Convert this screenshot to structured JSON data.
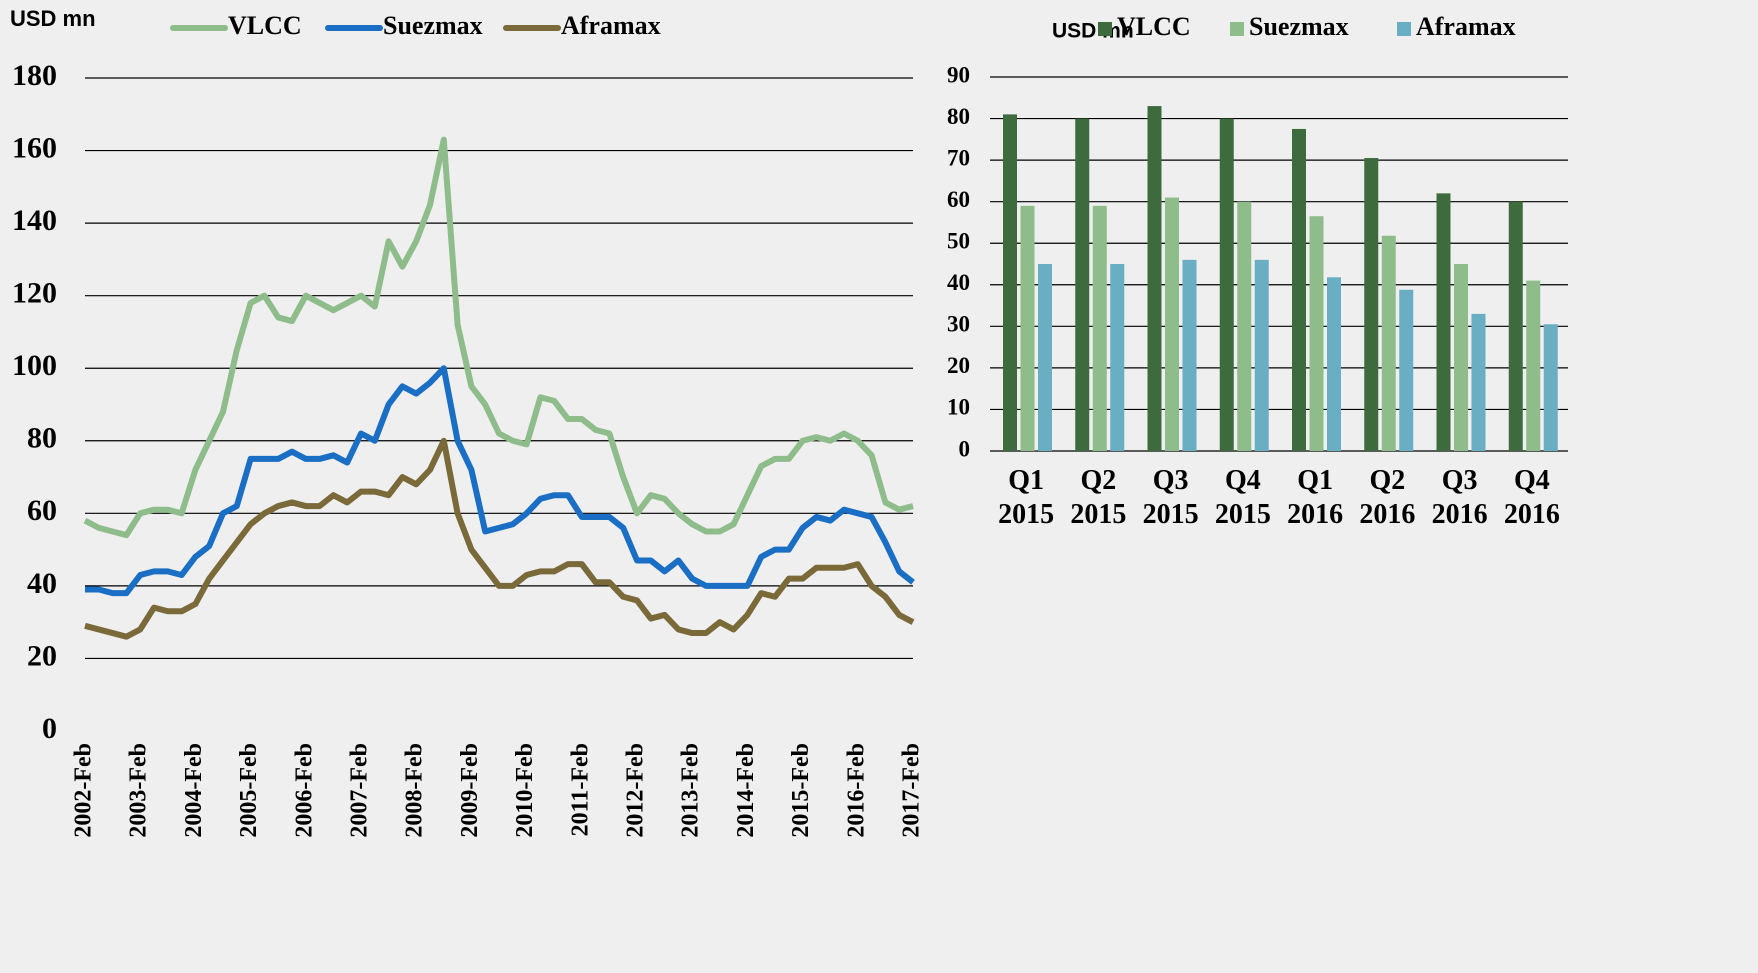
{
  "chart_data": [
    {
      "type": "line",
      "ylabel": "USD mn",
      "categories": [
        "2002-Feb",
        null,
        null,
        null,
        "2003-Feb",
        null,
        null,
        null,
        "2004-Feb",
        null,
        null,
        null,
        "2005-Feb",
        null,
        null,
        null,
        "2006-Feb",
        null,
        null,
        null,
        "2007-Feb",
        null,
        null,
        null,
        "2008-Feb",
        null,
        null,
        null,
        "2009-Feb",
        null,
        null,
        null,
        "2010-Feb",
        null,
        null,
        null,
        "2011-Feb",
        null,
        null,
        null,
        "2012-Feb",
        null,
        null,
        null,
        "2013-Feb",
        null,
        null,
        null,
        "2014-Feb",
        null,
        null,
        null,
        "2015-Feb",
        null,
        null,
        null,
        "2016-Feb",
        null,
        null,
        null,
        "2017-Feb"
      ],
      "series": [
        {
          "name": "VLCC",
          "color": "#8fbc8b",
          "values": [
            58,
            56,
            55,
            54,
            60,
            61,
            61,
            60,
            72,
            80,
            88,
            105,
            118,
            120,
            114,
            113,
            120,
            118,
            116,
            118,
            120,
            117,
            135,
            128,
            135,
            145,
            163,
            112,
            95,
            90,
            82,
            80,
            79,
            92,
            91,
            86,
            86,
            83,
            82,
            70,
            60,
            65,
            64,
            60,
            57,
            55,
            55,
            57,
            65,
            73,
            75,
            75,
            80,
            81,
            80,
            82,
            80,
            76,
            63,
            61,
            62
          ]
        },
        {
          "name": "Suezmax",
          "color": "#1a6fc4",
          "values": [
            39,
            39,
            38,
            38,
            43,
            44,
            44,
            43,
            48,
            51,
            60,
            62,
            75,
            75,
            75,
            77,
            75,
            75,
            76,
            74,
            82,
            80,
            90,
            95,
            93,
            96,
            100,
            80,
            72,
            55,
            56,
            57,
            60,
            64,
            65,
            65,
            59,
            59,
            59,
            56,
            47,
            47,
            44,
            47,
            42,
            40,
            40,
            40,
            40,
            48,
            50,
            50,
            56,
            59,
            58,
            61,
            60,
            59,
            52,
            44,
            41
          ]
        },
        {
          "name": "Aframax",
          "color": "#7a6a3a",
          "values": [
            29,
            28,
            27,
            26,
            28,
            34,
            33,
            33,
            35,
            42,
            47,
            52,
            57,
            60,
            62,
            63,
            62,
            62,
            65,
            63,
            66,
            66,
            65,
            70,
            68,
            72,
            80,
            60,
            50,
            45,
            40,
            40,
            43,
            44,
            44,
            46,
            46,
            41,
            41,
            37,
            36,
            31,
            32,
            28,
            27,
            27,
            30,
            28,
            32,
            38,
            37,
            42,
            42,
            45,
            45,
            45,
            46,
            40,
            37,
            32,
            30
          ]
        }
      ],
      "ylim": [
        0,
        180
      ],
      "yticks": [
        0,
        20,
        40,
        60,
        80,
        100,
        120,
        140,
        160,
        180
      ],
      "grid": true
    },
    {
      "type": "bar",
      "ylabel": "USD mn",
      "categories": [
        [
          "Q1",
          "2015"
        ],
        [
          "Q2",
          "2015"
        ],
        [
          "Q3",
          "2015"
        ],
        [
          "Q4",
          "2015"
        ],
        [
          "Q1",
          "2016"
        ],
        [
          "Q2",
          "2016"
        ],
        [
          "Q3",
          "2016"
        ],
        [
          "Q4",
          "2016"
        ]
      ],
      "series": [
        {
          "name": "VLCC",
          "color": "#3e6b3e",
          "values": [
            81,
            80,
            83,
            80,
            77.5,
            70.5,
            62,
            60
          ]
        },
        {
          "name": "Suezmax",
          "color": "#8fbc8b",
          "values": [
            59,
            59,
            61,
            60,
            56.5,
            51.8,
            45,
            41
          ]
        },
        {
          "name": "Aframax",
          "color": "#6aaec4",
          "values": [
            45,
            45,
            46,
            46,
            41.8,
            38.8,
            33,
            30.5
          ]
        }
      ],
      "ylim": [
        0,
        90
      ],
      "yticks": [
        0,
        10,
        20,
        30,
        40,
        50,
        60,
        70,
        80,
        90
      ],
      "grid": true
    }
  ]
}
